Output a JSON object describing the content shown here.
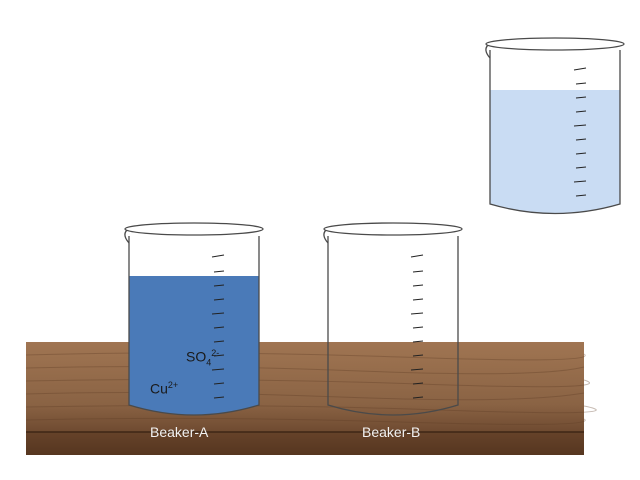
{
  "colors": {
    "table_top": "#8a6344",
    "table_edge": "#5e3d24",
    "copper_sulfate_solution": "#4a7ab8",
    "light_solution": "#c9dcf3",
    "glass_outline": "#4a4a4a",
    "label_text": "#f2f2f2"
  },
  "beaker_a": {
    "label": "Beaker-A",
    "ions": {
      "sulfate": {
        "base": "SO",
        "sub": "4",
        "sup": "2-"
      },
      "copper": {
        "base": "Cu",
        "sup": "2+"
      }
    },
    "fill_level": 0.76
  },
  "beaker_b": {
    "label": "Beaker-B",
    "fill_level": 0
  },
  "beaker_c": {
    "label": "",
    "fill_level": 0.7
  },
  "icons": {
    "table": "wooden-table-icon",
    "beaker": "glass-beaker-icon"
  }
}
